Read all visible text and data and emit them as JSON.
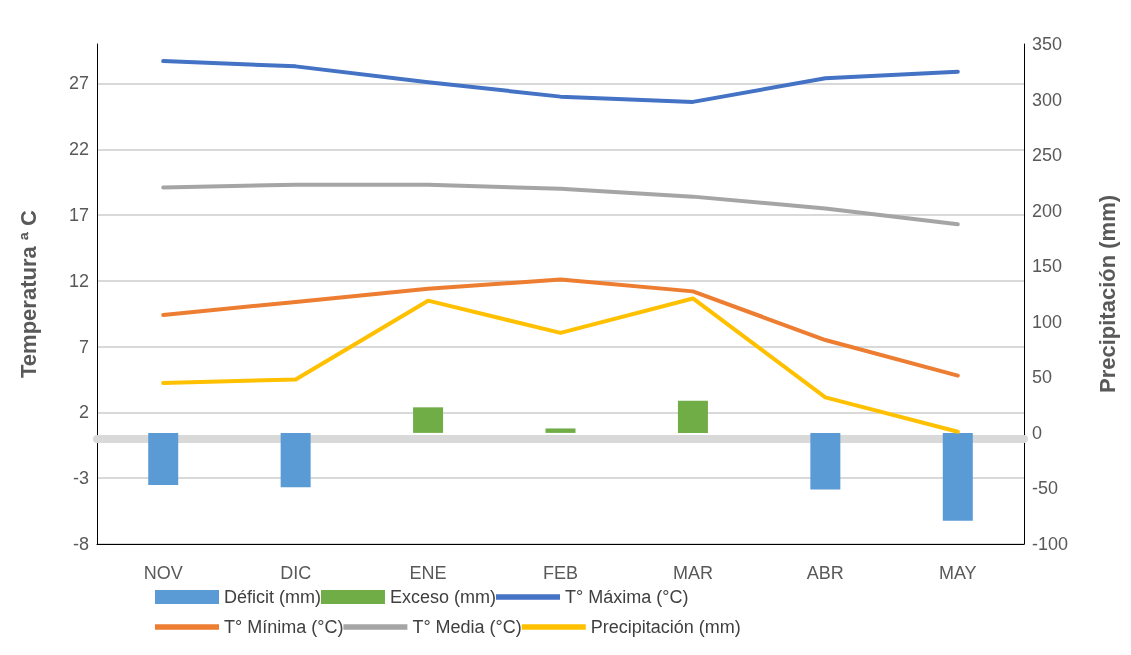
{
  "chart_data": {
    "type": "line",
    "ylabel": "Temperatura ª C",
    "y2label": "Precipitación (mm)",
    "categories": [
      "NOV",
      "DIC",
      "ENE",
      "FEB",
      "MAR",
      "ABR",
      "MAY"
    ],
    "series": [
      {
        "name": "Déficit (mm)",
        "type": "bar",
        "axis": "y2",
        "color": "#5b9bd5",
        "values": [
          -47,
          -49,
          null,
          null,
          null,
          -51,
          -79
        ]
      },
      {
        "name": "Exceso (mm)",
        "type": "bar",
        "axis": "y2",
        "color": "#70ad47",
        "values": [
          null,
          null,
          23,
          4,
          29,
          null,
          null
        ]
      },
      {
        "name": "T° Máxima (°C)",
        "color": "#4472c4",
        "values": [
          28.7,
          28.3,
          27.1,
          26.0,
          25.6,
          27.4,
          27.9
        ]
      },
      {
        "name": "T° Mínima (°C)",
        "color": "#ed7d31",
        "values": [
          9.4,
          10.4,
          11.4,
          12.1,
          11.2,
          7.5,
          4.8
        ]
      },
      {
        "name": "T° Media (°C)",
        "color": "#a5a5a5",
        "values": [
          19.1,
          19.3,
          19.3,
          19.0,
          18.4,
          17.5,
          16.3
        ]
      },
      {
        "name": "Precipitación (mm)",
        "axis": "y2",
        "color": "#ffc000",
        "values": [
          45,
          48,
          119,
          90,
          121,
          32,
          1
        ]
      }
    ],
    "ylim": [
      -8,
      30
    ],
    "yticks": [
      -8,
      -3,
      2,
      7,
      12,
      17,
      22,
      27
    ],
    "y2lim": [
      -100,
      350
    ],
    "y2ticks": [
      -100,
      -50,
      0,
      50,
      100,
      150,
      200,
      250,
      300,
      350
    ],
    "grid": "y",
    "legend": "bottom",
    "marker": "none",
    "line_style": "solid"
  }
}
